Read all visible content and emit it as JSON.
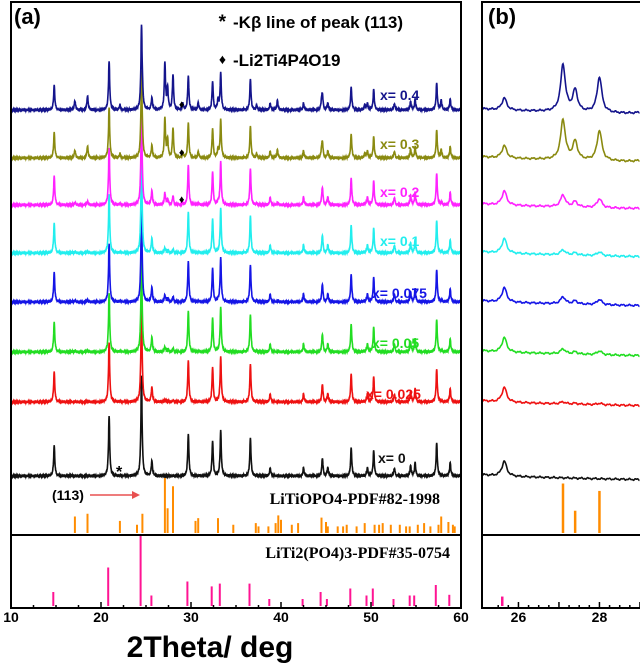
{
  "chart_data": {
    "type": "line",
    "title": "",
    "xlabel": "2Theta/ deg",
    "ylabel": "",
    "panels": [
      {
        "label": "(a)",
        "xlim": [
          10,
          60
        ],
        "xticks": [
          10,
          20,
          30,
          40,
          50,
          60
        ]
      },
      {
        "label": "(b)",
        "xlim": [
          25.1,
          29.0
        ],
        "xticks": [
          26,
          28
        ]
      }
    ],
    "legend": [
      {
        "symbol": "*",
        "text": "-Kβ line of peak (113)"
      },
      {
        "symbol": "♦",
        "text": "-Li2Ti4P4O19"
      }
    ],
    "annotations": {
      "peak_label": "(113)",
      "kbeta_marker": "*",
      "impurity_marker": "♦"
    },
    "series": [
      {
        "name": "x= 0.4",
        "color": "#14148c",
        "liTiOPO4_fraction": 0.47,
        "impurity": true
      },
      {
        "name": "x= 0.3",
        "color": "#8a8a10",
        "liTiOPO4_fraction": 0.4,
        "impurity": true
      },
      {
        "name": "x= 0.2",
        "color": "#ff22ff",
        "liTiOPO4_fraction": 0.12,
        "impurity": true
      },
      {
        "name": "x= 0.1",
        "color": "#22eeee",
        "liTiOPO4_fraction": 0.05,
        "impurity": false
      },
      {
        "name": "x= 0.075",
        "color": "#1515e6",
        "liTiOPO4_fraction": 0.07,
        "impurity": false
      },
      {
        "name": "x= 0.05",
        "color": "#22dd22",
        "liTiOPO4_fraction": 0.05,
        "impurity": false
      },
      {
        "name": "x= 0.025",
        "color": "#ee1111",
        "liTiOPO4_fraction": 0.02,
        "impurity": false
      },
      {
        "name": "x= 0",
        "color": "#111111",
        "liTiOPO4_fraction": 0.0,
        "impurity": false
      }
    ],
    "lithium_titanium_phosphate_peaks": [
      [
        14.8,
        0.3
      ],
      [
        20.9,
        0.6
      ],
      [
        24.5,
        1.0
      ],
      [
        25.65,
        0.15
      ],
      [
        29.7,
        0.42
      ],
      [
        32.4,
        0.35
      ],
      [
        33.3,
        0.45
      ],
      [
        36.6,
        0.38
      ],
      [
        38.8,
        0.08
      ],
      [
        42.5,
        0.08
      ],
      [
        44.6,
        0.18
      ],
      [
        45.2,
        0.08
      ],
      [
        47.8,
        0.28
      ],
      [
        49.6,
        0.08
      ],
      [
        50.3,
        0.25
      ],
      [
        52.6,
        0.08
      ],
      [
        54.4,
        0.1
      ],
      [
        54.9,
        0.13
      ],
      [
        57.3,
        0.33
      ],
      [
        58.8,
        0.13
      ]
    ],
    "liTiOPO4_peaks": [
      [
        17.1,
        0.2
      ],
      [
        18.5,
        0.3
      ],
      [
        22.1,
        0.1
      ],
      [
        24.6,
        0.2
      ],
      [
        27.1,
        1.0
      ],
      [
        27.4,
        0.45
      ],
      [
        28.0,
        0.75
      ],
      [
        30.8,
        0.15
      ],
      [
        33.0,
        0.2
      ],
      [
        37.3,
        0.1
      ],
      [
        39.6,
        0.2
      ],
      [
        44.5,
        0.15
      ],
      [
        49.3,
        0.1
      ],
      [
        57.8,
        0.2
      ]
    ],
    "references": [
      {
        "name": "LiTiOPO4-PDF#82-1998",
        "color": "#ff8c00",
        "peaks": [
          [
            17.1,
            0.3
          ],
          [
            18.5,
            0.35
          ],
          [
            22.1,
            0.22
          ],
          [
            24.0,
            0.15
          ],
          [
            24.6,
            0.35
          ],
          [
            27.1,
            1.0
          ],
          [
            27.4,
            0.45
          ],
          [
            28.0,
            0.85
          ],
          [
            30.5,
            0.22
          ],
          [
            30.8,
            0.27
          ],
          [
            33.0,
            0.27
          ],
          [
            34.7,
            0.15
          ],
          [
            37.2,
            0.18
          ],
          [
            37.5,
            0.12
          ],
          [
            38.6,
            0.12
          ],
          [
            39.4,
            0.18
          ],
          [
            39.7,
            0.32
          ],
          [
            40.0,
            0.24
          ],
          [
            41.2,
            0.15
          ],
          [
            41.9,
            0.18
          ],
          [
            44.5,
            0.28
          ],
          [
            45.0,
            0.2
          ],
          [
            45.2,
            0.12
          ],
          [
            46.3,
            0.12
          ],
          [
            46.9,
            0.12
          ],
          [
            47.3,
            0.15
          ],
          [
            48.4,
            0.12
          ],
          [
            49.3,
            0.18
          ],
          [
            50.4,
            0.15
          ],
          [
            50.9,
            0.15
          ],
          [
            51.3,
            0.18
          ],
          [
            52.2,
            0.15
          ],
          [
            53.2,
            0.15
          ],
          [
            53.9,
            0.12
          ],
          [
            54.3,
            0.12
          ],
          [
            55.2,
            0.15
          ],
          [
            55.9,
            0.18
          ],
          [
            56.6,
            0.12
          ],
          [
            57.5,
            0.15
          ],
          [
            57.8,
            0.3
          ],
          [
            58.6,
            0.2
          ],
          [
            59.1,
            0.15
          ],
          [
            59.3,
            0.12
          ]
        ]
      },
      {
        "name": "LiTi2(PO4)3-PDF#35-0754",
        "color": "#ff1493",
        "peaks": [
          [
            14.7,
            0.2
          ],
          [
            20.8,
            0.55
          ],
          [
            24.4,
            1.0
          ],
          [
            25.6,
            0.15
          ],
          [
            29.6,
            0.35
          ],
          [
            32.3,
            0.28
          ],
          [
            33.2,
            0.32
          ],
          [
            36.5,
            0.32
          ],
          [
            38.7,
            0.1
          ],
          [
            42.4,
            0.1
          ],
          [
            44.4,
            0.2
          ],
          [
            45.1,
            0.1
          ],
          [
            47.7,
            0.25
          ],
          [
            49.5,
            0.15
          ],
          [
            50.2,
            0.25
          ],
          [
            52.5,
            0.1
          ],
          [
            54.3,
            0.15
          ],
          [
            54.8,
            0.15
          ],
          [
            57.2,
            0.3
          ],
          [
            58.7,
            0.16
          ]
        ]
      }
    ]
  }
}
